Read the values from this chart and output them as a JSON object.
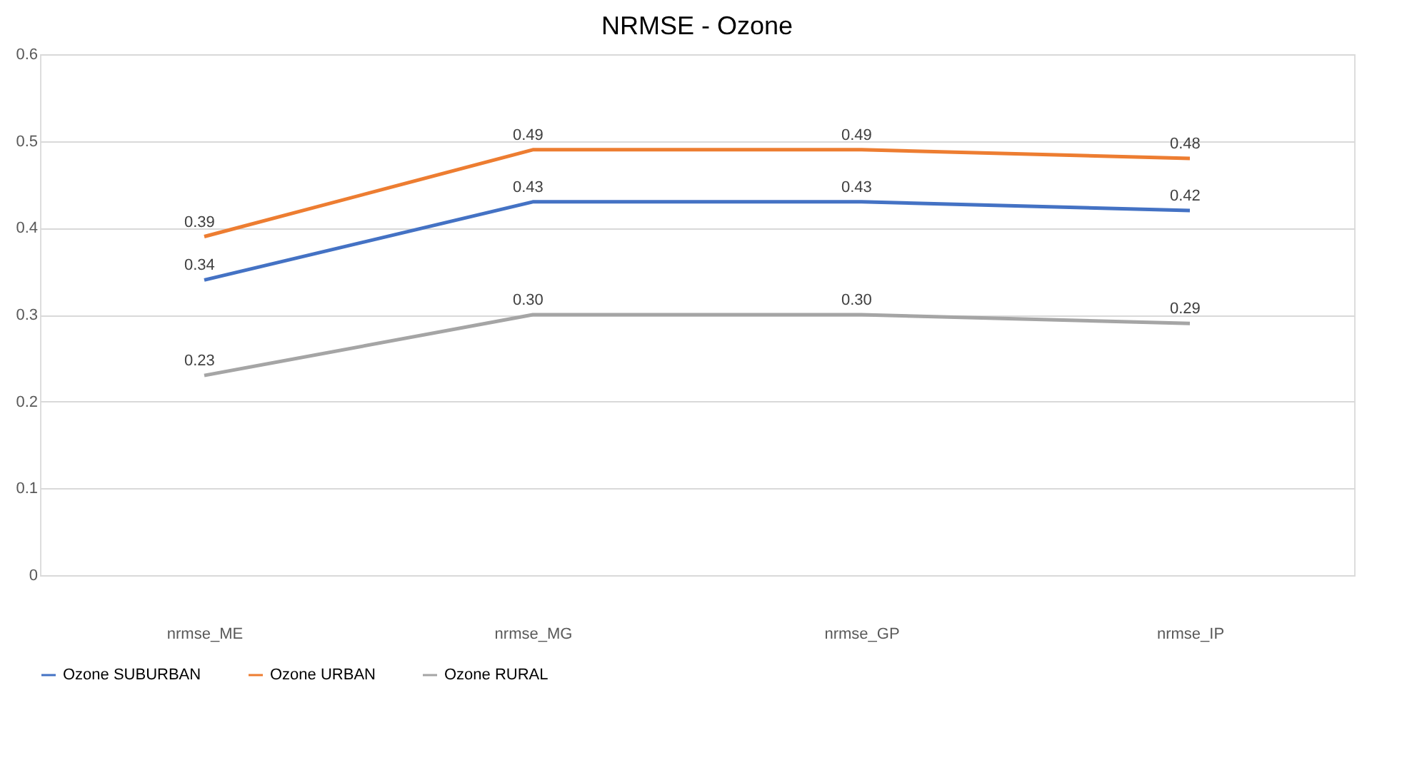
{
  "chart_data": {
    "type": "line",
    "title": "NRMSE - Ozone",
    "categories": [
      "nrmse_ME",
      "nrmse_MG",
      "nrmse_GP",
      "nrmse_IP"
    ],
    "series": [
      {
        "name": "Ozone SUBURBAN",
        "color": "#4472c4",
        "values": [
          0.34,
          0.43,
          0.43,
          0.42
        ],
        "value_labels": [
          "0.34",
          "0.43",
          "0.43",
          "0.42"
        ]
      },
      {
        "name": "Ozone URBAN",
        "color": "#ed7d31",
        "values": [
          0.39,
          0.49,
          0.49,
          0.48
        ],
        "value_labels": [
          "0.39",
          "0.49",
          "0.49",
          "0.48"
        ]
      },
      {
        "name": "Ozone RURAL",
        "color": "#a5a5a5",
        "values": [
          0.23,
          0.3,
          0.3,
          0.29
        ],
        "value_labels": [
          "0.23",
          "0.30",
          "0.30",
          "0.29"
        ]
      }
    ],
    "ylim": [
      0,
      0.6
    ],
    "yticks": [
      0,
      0.1,
      0.2,
      0.3,
      0.4,
      0.5,
      0.6
    ],
    "grid": "y",
    "legend": "bottom",
    "marker": "none",
    "line_style": "solid"
  }
}
